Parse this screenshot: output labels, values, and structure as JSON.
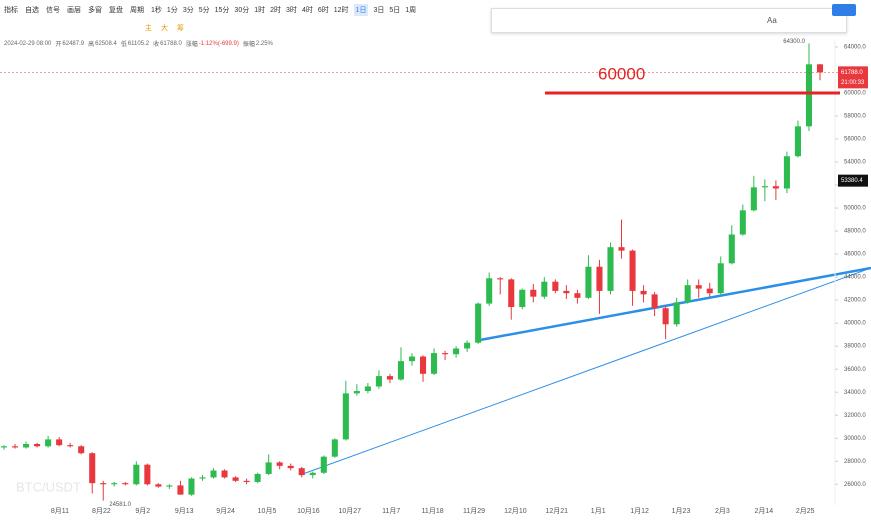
{
  "toolbar": {
    "menu": [
      "指标",
      "自选",
      "信号",
      "画层",
      "多窗",
      "复盘",
      "周期"
    ],
    "intervals": [
      "1秒",
      "1分",
      "3分",
      "5分",
      "15分",
      "30分",
      "1时",
      "2时",
      "3时",
      "4时",
      "6时",
      "12时",
      "1日",
      "3日",
      "5日",
      "1周"
    ],
    "active_interval": 12,
    "indicators": [
      "主",
      "大",
      "筹"
    ],
    "drawing_text": "Aa"
  },
  "info": {
    "time": "2024-02-29 08:00",
    "fields": [
      [
        "开",
        "62487.9"
      ],
      [
        "高",
        "62508.4"
      ],
      [
        "低",
        "61105.2"
      ],
      [
        "收",
        "61788.0"
      ],
      [
        "涨幅",
        "-1.12%(-699.9)"
      ],
      [
        "振幅",
        "2.25%"
      ]
    ]
  },
  "chart_data": {
    "type": "candlestick",
    "watermark": "BTC/USDT",
    "up_color": "#2dbb4f",
    "down_color": "#e8383d",
    "ylim": [
      24200,
      64600
    ],
    "yticks": [
      {
        "value": 26000,
        "label": "26000.0"
      },
      {
        "value": 28000,
        "label": "28000.0"
      },
      {
        "value": 30000,
        "label": "30000.0"
      },
      {
        "value": 32000,
        "label": "32000.0"
      },
      {
        "value": 34000,
        "label": "34000.0"
      },
      {
        "value": 36000,
        "label": "36000.0"
      },
      {
        "value": 38000,
        "label": "38000.0"
      },
      {
        "value": 40000,
        "label": "40000.0"
      },
      {
        "value": 42000,
        "label": "42000.0"
      },
      {
        "value": 44000,
        "label": "44000.0"
      },
      {
        "value": 46000,
        "label": "46000.0"
      },
      {
        "value": 48000,
        "label": "48000.0"
      },
      {
        "value": 50000,
        "label": "50000.0"
      },
      {
        "value": 52000,
        "label": "52000.0"
      },
      {
        "value": 54000,
        "label": "54000.0"
      },
      {
        "value": 56000,
        "label": "56000.0"
      },
      {
        "value": 58000,
        "label": "58000.0"
      },
      {
        "value": 60000,
        "label": "60000.0"
      },
      {
        "value": 64000,
        "label": "64000.0"
      }
    ],
    "xticks": [
      "8月11",
      "8月22",
      "9月2",
      "9月13",
      "9月24",
      "10月5",
      "10月16",
      "10月27",
      "11月7",
      "11月18",
      "11月29",
      "12月10",
      "12月21",
      "1月1",
      "1月12",
      "1月23",
      "2月3",
      "2月14",
      "2月25"
    ],
    "candles": [
      [
        29200,
        29400,
        29000,
        29300
      ],
      [
        29300,
        29500,
        29100,
        29200
      ],
      [
        29200,
        29700,
        29100,
        29500
      ],
      [
        29500,
        29600,
        29200,
        29300
      ],
      [
        29300,
        30200,
        29200,
        29900
      ],
      [
        29900,
        30100,
        29300,
        29400
      ],
      [
        29400,
        29600,
        29200,
        29300
      ],
      [
        29300,
        29400,
        28600,
        28700
      ],
      [
        28700,
        28800,
        25200,
        26100
      ],
      [
        26100,
        26300,
        24581,
        26000
      ],
      [
        26000,
        26200,
        25800,
        26100
      ],
      [
        26100,
        26200,
        25900,
        26000
      ],
      [
        26000,
        28000,
        25900,
        27700
      ],
      [
        27700,
        27800,
        25900,
        26000
      ],
      [
        26000,
        26100,
        25700,
        25800
      ],
      [
        25800,
        26000,
        25600,
        25900
      ],
      [
        25900,
        26300,
        25100,
        25100
      ],
      [
        25100,
        26600,
        25000,
        26500
      ],
      [
        26500,
        26800,
        26300,
        26600
      ],
      [
        26600,
        27400,
        26500,
        27200
      ],
      [
        27200,
        27300,
        26500,
        26600
      ],
      [
        26600,
        26700,
        26200,
        26300
      ],
      [
        26300,
        26500,
        26000,
        26200
      ],
      [
        26200,
        27000,
        26100,
        26900
      ],
      [
        26900,
        28600,
        26800,
        27900
      ],
      [
        27900,
        28000,
        27300,
        27600
      ],
      [
        27600,
        27800,
        27200,
        27400
      ],
      [
        27400,
        27500,
        26600,
        26800
      ],
      [
        26800,
        27100,
        26500,
        27000
      ],
      [
        27000,
        28500,
        26900,
        28400
      ],
      [
        28400,
        30000,
        28300,
        29900
      ],
      [
        29900,
        35000,
        29800,
        33900
      ],
      [
        33900,
        34700,
        33700,
        34100
      ],
      [
        34100,
        34800,
        33900,
        34500
      ],
      [
        34500,
        35900,
        34300,
        35400
      ],
      [
        35400,
        35600,
        34800,
        35100
      ],
      [
        35100,
        37900,
        35000,
        36700
      ],
      [
        36700,
        37400,
        36300,
        37100
      ],
      [
        37100,
        37200,
        34900,
        35600
      ],
      [
        35600,
        37800,
        35500,
        37400
      ],
      [
        37400,
        37600,
        36800,
        37300
      ],
      [
        37300,
        38000,
        37000,
        37800
      ],
      [
        37800,
        38500,
        37500,
        38300
      ],
      [
        38300,
        41800,
        38200,
        41700
      ],
      [
        41700,
        44400,
        41500,
        43900
      ],
      [
        43900,
        44000,
        42500,
        43800
      ],
      [
        43800,
        43900,
        40300,
        41400
      ],
      [
        41400,
        43000,
        41200,
        42900
      ],
      [
        42900,
        43400,
        41800,
        42300
      ],
      [
        42300,
        44000,
        42100,
        43600
      ],
      [
        43600,
        43800,
        42600,
        42800
      ],
      [
        42800,
        43300,
        42100,
        42600
      ],
      [
        42600,
        42900,
        41700,
        42200
      ],
      [
        42200,
        45900,
        42100,
        44900
      ],
      [
        44900,
        45500,
        40800,
        42800
      ],
      [
        42800,
        47000,
        42500,
        46600
      ],
      [
        46600,
        49000,
        45600,
        46300
      ],
      [
        46300,
        46400,
        41500,
        42800
      ],
      [
        42800,
        43300,
        41800,
        42500
      ],
      [
        42500,
        42700,
        40600,
        41300
      ],
      [
        41300,
        41500,
        38600,
        39900
      ],
      [
        39900,
        42200,
        39700,
        41800
      ],
      [
        41800,
        43800,
        41700,
        43300
      ],
      [
        43300,
        43800,
        42200,
        43000
      ],
      [
        43000,
        43500,
        42300,
        42600
      ],
      [
        42600,
        45800,
        42500,
        45200
      ],
      [
        45200,
        48500,
        45100,
        47700
      ],
      [
        47700,
        50300,
        47600,
        49800
      ],
      [
        49800,
        52800,
        49700,
        51800
      ],
      [
        51800,
        52500,
        50600,
        51900
      ],
      [
        51900,
        52400,
        50700,
        51700
      ],
      [
        51700,
        54900,
        51300,
        54500
      ],
      [
        54500,
        57600,
        54400,
        57100
      ],
      [
        57100,
        64300,
        56700,
        62487.9
      ],
      [
        62487.9,
        62508.4,
        61105.2,
        61788.0
      ]
    ],
    "high_label": "64300.0",
    "low_label": "24581.0",
    "price_label": "61788.0",
    "countdown": "21:00:33",
    "crosshair_label": "53380.4",
    "level": 60000
  }
}
